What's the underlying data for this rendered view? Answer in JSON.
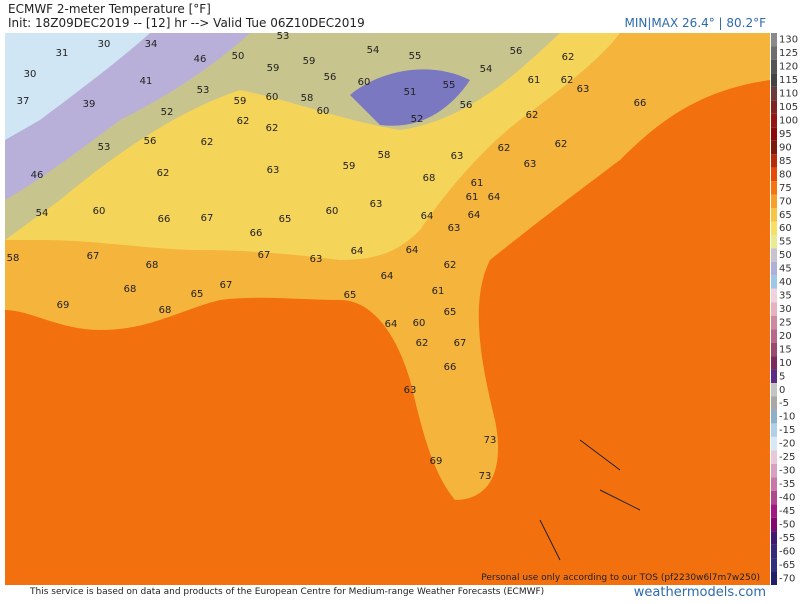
{
  "header": {
    "title": "ECMWF 2-meter Temperature [°F]",
    "subtitle": "Init: 18Z09DEC2019 -- [12] hr --> Valid Tue 06Z10DEC2019",
    "minmax": "MIN|MAX 26.4° | 80.2°F"
  },
  "footer": {
    "notice": "This service is based on data and products of the European Centre for Medium-range Weather Forecasts (ECMWF)",
    "site": "weathermodels.com",
    "tos": "Personal use only according to our TOS (pf2230w6l7m7w250)"
  },
  "colorbar": {
    "ticks": [
      130,
      125,
      120,
      115,
      110,
      105,
      100,
      95,
      90,
      85,
      80,
      75,
      70,
      65,
      60,
      55,
      50,
      45,
      40,
      35,
      30,
      25,
      20,
      15,
      10,
      5,
      0,
      -5,
      -10,
      -15,
      -20,
      -25,
      -30,
      -35,
      -40,
      -45,
      -50,
      -55,
      -60,
      -65,
      -70
    ],
    "colors": [
      "#8a8a8a",
      "#6e6e6e",
      "#555555",
      "#444444",
      "#6b3a3a",
      "#7e2424",
      "#951515",
      "#8b0a0a",
      "#7c1a0c",
      "#b82a08",
      "#e84a06",
      "#f57410",
      "#f7a028",
      "#f7c444",
      "#f6e064",
      "#eaea8e",
      "#c9c2cf",
      "#aeb0d8",
      "#9ec6e6",
      "#f0d2dc",
      "#e6b2c2",
      "#d08aa0",
      "#b86888",
      "#9a4a70",
      "#7a2c5c",
      "#5a2c86",
      "#c4c4c4",
      "#a8a8a8",
      "#8fb0c8",
      "#b0d0e8",
      "#d8e8f4",
      "#e8c8d8",
      "#d8a0c0",
      "#c878a8",
      "#b04890",
      "#a01880",
      "#800870",
      "#401a70",
      "#382878",
      "#303080",
      "#20206a"
    ]
  },
  "map_labels": [
    31,
    30,
    34,
    30,
    46,
    50,
    53,
    54,
    55,
    56,
    62,
    59,
    59,
    41,
    56,
    60,
    55,
    54,
    61,
    62,
    37,
    39,
    53,
    59,
    60,
    58,
    51,
    63,
    52,
    56,
    62,
    52,
    66,
    62,
    62,
    60,
    56,
    62,
    53,
    58,
    63,
    62,
    62,
    59,
    63,
    62,
    68,
    61,
    63,
    46,
    63,
    64,
    61,
    54,
    60,
    66,
    67,
    65,
    60,
    64,
    64,
    66,
    63,
    58,
    67,
    68,
    67,
    63,
    64,
    64,
    62,
    64,
    68,
    65,
    67,
    65,
    61,
    69,
    68,
    65,
    64,
    60,
    62,
    67,
    66,
    63,
    73,
    69,
    73
  ]
}
